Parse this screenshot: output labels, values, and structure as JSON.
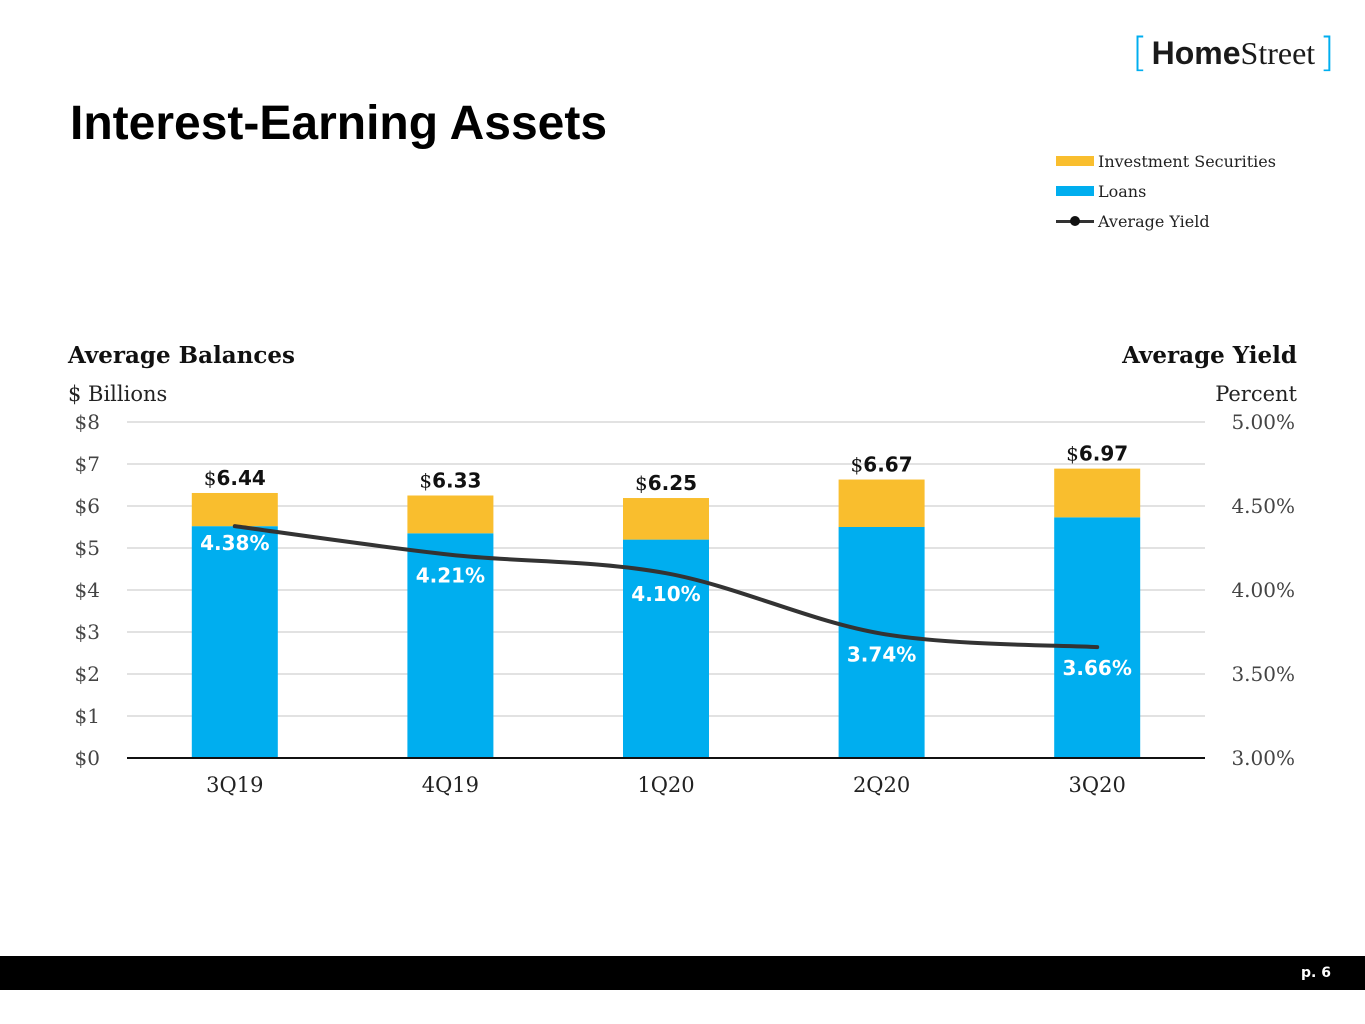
{
  "logo": {
    "bracket_left": "[",
    "home": "Home",
    "street": "Street",
    "bracket_right": "]"
  },
  "title": "Interest-Earning Assets",
  "legend": {
    "investment": "Investment Securities",
    "loans": "Loans",
    "yield": "Average Yield"
  },
  "axis": {
    "left_heading": "Average Balances",
    "left_unit": "$ Billions",
    "right_heading": "Average Yield",
    "right_unit": "Percent"
  },
  "colors": {
    "loans": "#00AEEF",
    "investment": "#F9BE2E",
    "line": "#333333",
    "grid": "#D9D9D9"
  },
  "chart_data": {
    "type": "bar",
    "title": "Interest-Earning Assets",
    "categories": [
      "3Q19",
      "4Q19",
      "1Q20",
      "2Q20",
      "3Q20"
    ],
    "series": [
      {
        "name": "Loans",
        "values": [
          5.52,
          5.35,
          5.2,
          5.5,
          5.73
        ]
      },
      {
        "name": "Investment Securities",
        "values": [
          0.79,
          0.9,
          0.99,
          1.13,
          1.16
        ]
      }
    ],
    "totals": [
      6.44,
      6.33,
      6.25,
      6.67,
      6.97
    ],
    "total_labels": [
      "6.44",
      "6.33",
      "6.25",
      "6.67",
      "6.97"
    ],
    "total_label_prefix": "$",
    "line": {
      "name": "Average Yield",
      "values": [
        4.38,
        4.21,
        4.1,
        3.74,
        3.66
      ],
      "labels": [
        "4.38%",
        "4.21%",
        "4.10%",
        "3.74%",
        "3.66%"
      ]
    },
    "ylim": [
      0,
      8
    ],
    "yticks": [
      "$0",
      "$1",
      "$2",
      "$3",
      "$4",
      "$5",
      "$6",
      "$7",
      "$8"
    ],
    "y2lim": [
      3.0,
      5.0
    ],
    "y2ticks": [
      "3.00%",
      "3.50%",
      "4.00%",
      "4.50%",
      "5.00%"
    ],
    "ylabel": "$ Billions",
    "y2label": "Percent"
  },
  "footer": {
    "page": "p. 6"
  }
}
